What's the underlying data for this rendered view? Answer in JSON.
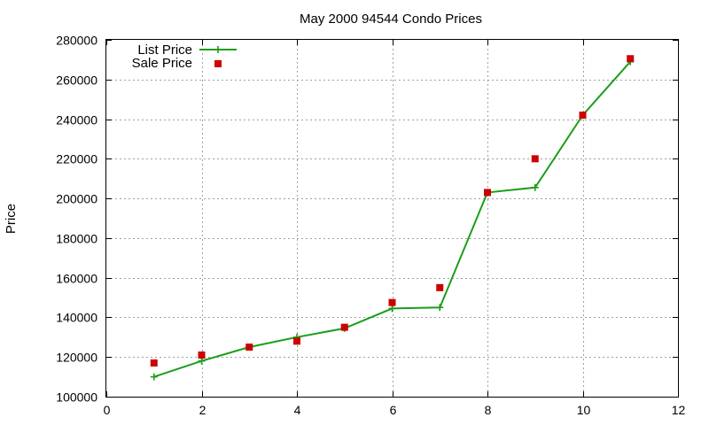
{
  "chart_data": {
    "type": "line",
    "title": "May 2000 94544 Condo Prices",
    "xlabel": "",
    "ylabel": "Price",
    "xlim": [
      0,
      12
    ],
    "ylim": [
      100000,
      280000
    ],
    "xticks": [
      "0",
      "2",
      "4",
      "6",
      "8",
      "10",
      "12"
    ],
    "yticks": [
      "100000",
      "120000",
      "140000",
      "160000",
      "180000",
      "200000",
      "220000",
      "240000",
      "260000",
      "280000"
    ],
    "grid": true,
    "legend_position": "top-left",
    "x": [
      1,
      2,
      3,
      4,
      5,
      6,
      7,
      8,
      9,
      10,
      11
    ],
    "series": [
      {
        "name": "List Price",
        "style": "line-with-plus-markers",
        "color": "#1a9e1a",
        "values": [
          110000,
          118000,
          125000,
          130000,
          134500,
          144500,
          145000,
          203000,
          205500,
          242000,
          269000
        ]
      },
      {
        "name": "Sale Price",
        "style": "square-markers",
        "color": "#cc0000",
        "values": [
          117000,
          121000,
          125000,
          128000,
          135000,
          147500,
          155000,
          203000,
          220000,
          242000,
          270500
        ]
      }
    ]
  }
}
